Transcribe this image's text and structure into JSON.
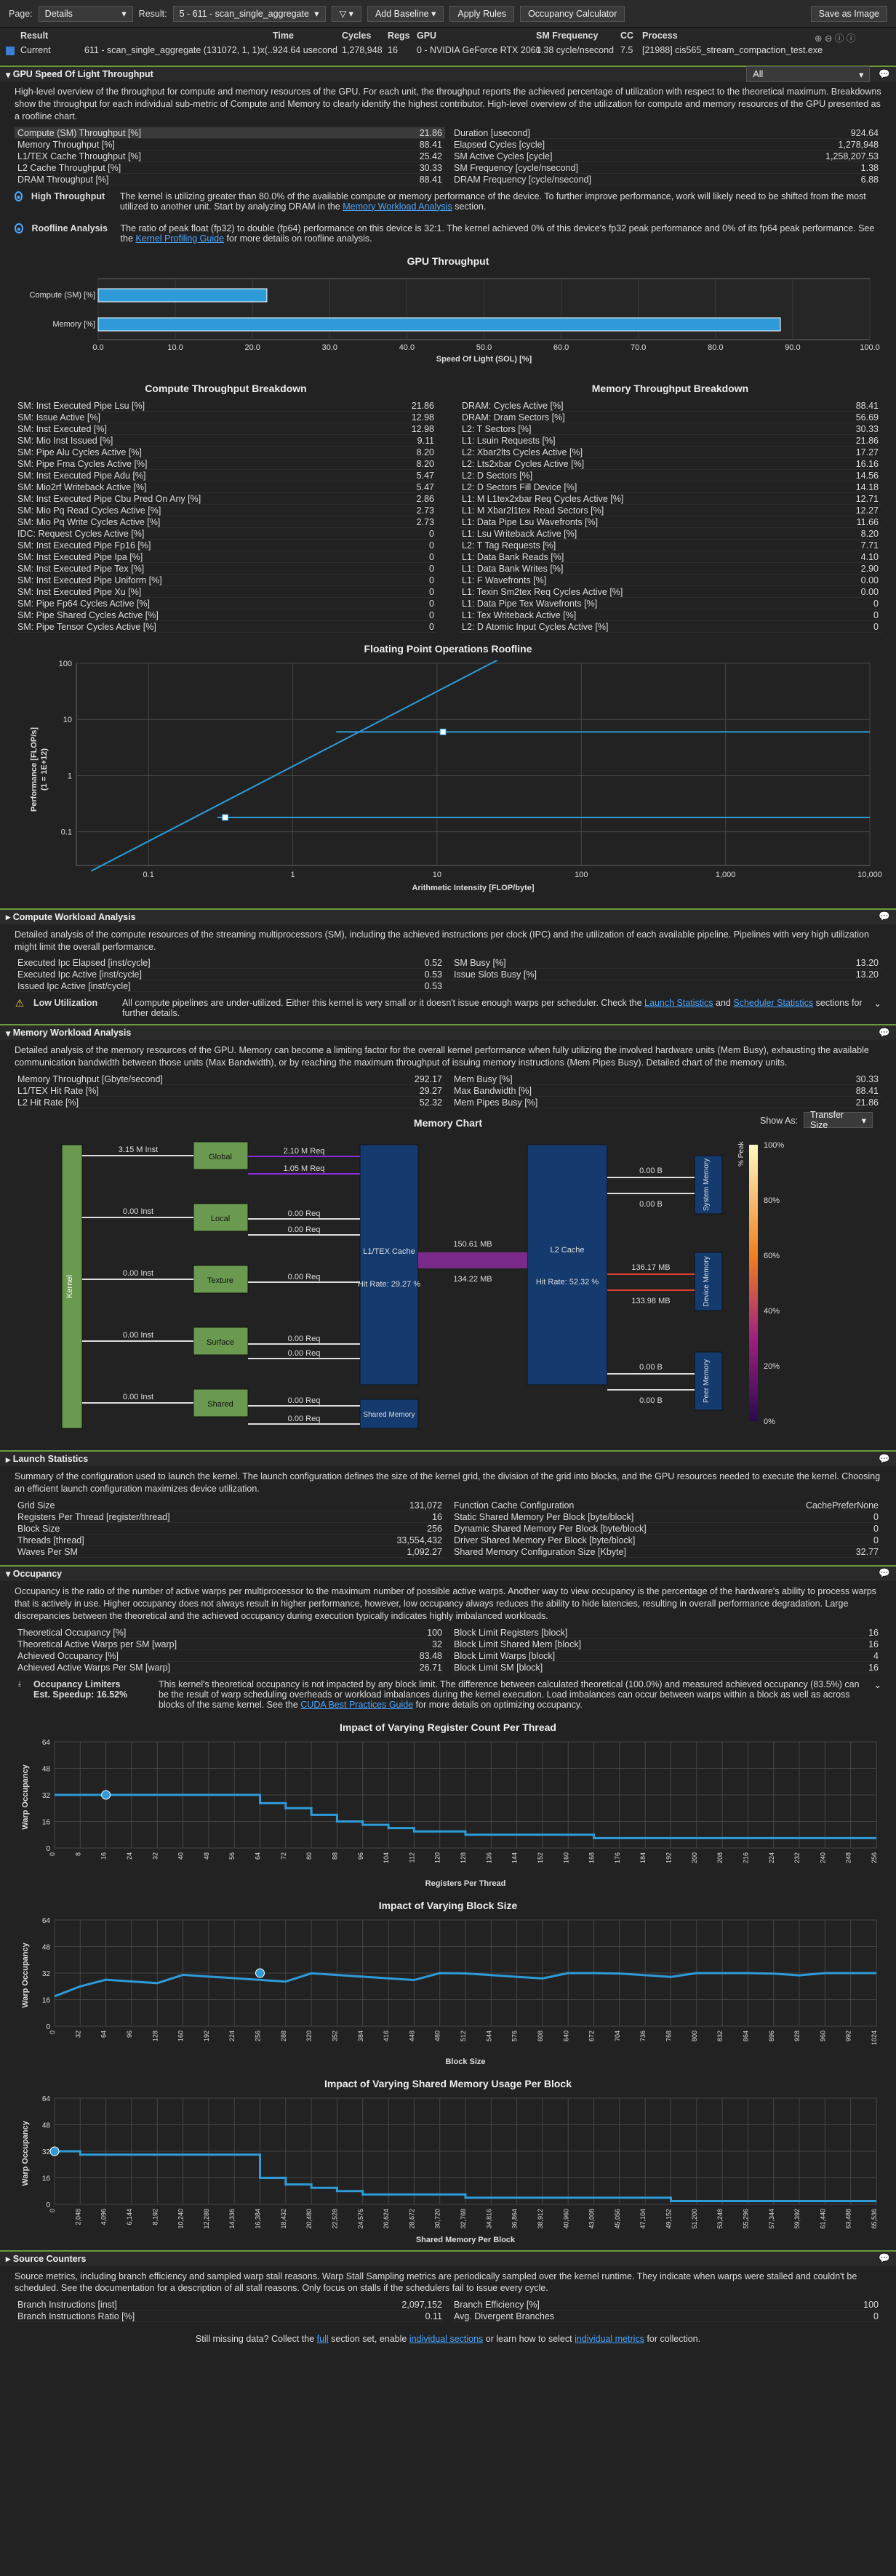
{
  "toolbar": {
    "page_label": "Page:",
    "page_value": "Details",
    "result_label": "Result:",
    "result_value": "5 - 611 - scan_single_aggregate",
    "filter": "▽ ▾",
    "add_baseline": "Add Baseline ▾",
    "apply_rules": "Apply Rules",
    "occupancy_calc": "Occupancy Calculator",
    "save_image": "Save as Image"
  },
  "header": {
    "cols": [
      "Result",
      "Time",
      "Cycles",
      "Regs",
      "GPU",
      "SM Frequency",
      "CC",
      "Process"
    ],
    "current_label": "Current",
    "values": [
      "611 - scan_single_aggregate (131072, 1, 1)x(...",
      "924.64 usecond",
      "1,278,948",
      "16",
      "0 - NVIDIA GeForce RTX 2060",
      "1.38 cycle/nsecond",
      "7.5",
      "[21988] cis565_stream_compaction_test.exe"
    ]
  },
  "sol": {
    "title": "GPU Speed Of Light Throughput",
    "dropdown": "All",
    "desc": "High-level overview of the throughput for compute and memory resources of the GPU. For each unit, the throughput reports the achieved percentage of utilization with respect to the theoretical maximum. Breakdowns show the throughput for each individual sub-metric of Compute and Memory to clearly identify the highest contributor. High-level overview of the utilization for compute and memory resources of the GPU presented as a roofline chart.",
    "left": [
      [
        "Compute (SM) Throughput [%]",
        "21.86"
      ],
      [
        "Memory Throughput [%]",
        "88.41"
      ],
      [
        "L1/TEX Cache Throughput [%]",
        "25.42"
      ],
      [
        "L2 Cache Throughput [%]",
        "30.33"
      ],
      [
        "DRAM Throughput [%]",
        "88.41"
      ]
    ],
    "right": [
      [
        "Duration [usecond]",
        "924.64"
      ],
      [
        "Elapsed Cycles [cycle]",
        "1,278,948"
      ],
      [
        "SM Active Cycles [cycle]",
        "1,258,207.53"
      ],
      [
        "SM Frequency [cycle/nsecond]",
        "1.38"
      ],
      [
        "DRAM Frequency [cycle/nsecond]",
        "6.88"
      ]
    ],
    "hint1_title": "High Throughput",
    "hint1": "The kernel is utilizing greater than 80.0% of the available compute or memory performance of the device. To further improve performance, work will likely need to be shifted from the most utilized to another unit. Start by analyzing DRAM in the",
    "hint1_link": "Memory Workload Analysis",
    "hint1_end": "section.",
    "hint2_title": "Roofline Analysis",
    "hint2": "The ratio of peak float (fp32) to double (fp64) performance on this device is 32:1. The kernel achieved 0% of this device's fp32 peak performance and 0% of its fp64 peak performance. See the",
    "hint2_link": "Kernel Profiling Guide",
    "hint2_end": "for more details on roofline analysis."
  },
  "gpu_chart": {
    "title": "GPU Throughput",
    "xlabel": "Speed Of Light (SOL) [%]",
    "cats": [
      "Compute (SM) [%]",
      "Memory [%]"
    ],
    "values": [
      21.86,
      88.41
    ],
    "ticks": [
      "0.0",
      "10.0",
      "20.0",
      "30.0",
      "40.0",
      "50.0",
      "60.0",
      "70.0",
      "80.0",
      "90.0",
      "100.0"
    ]
  },
  "breakdown": {
    "left_title": "Compute Throughput Breakdown",
    "right_title": "Memory Throughput Breakdown",
    "left": [
      [
        "SM: Inst Executed Pipe Lsu [%]",
        "21.86"
      ],
      [
        "SM: Issue Active [%]",
        "12.98"
      ],
      [
        "SM: Inst Executed [%]",
        "12.98"
      ],
      [
        "SM: Mio Inst Issued [%]",
        "9.11"
      ],
      [
        "SM: Pipe Alu Cycles Active [%]",
        "8.20"
      ],
      [
        "SM: Pipe Fma Cycles Active [%]",
        "8.20"
      ],
      [
        "SM: Inst Executed Pipe Adu [%]",
        "5.47"
      ],
      [
        "SM: Mio2rf Writeback Active [%]",
        "5.47"
      ],
      [
        "SM: Inst Executed Pipe Cbu Pred On Any [%]",
        "2.86"
      ],
      [
        "SM: Mio Pq Read Cycles Active [%]",
        "2.73"
      ],
      [
        "SM: Mio Pq Write Cycles Active [%]",
        "2.73"
      ],
      [
        "IDC: Request Cycles Active [%]",
        "0"
      ],
      [
        "SM: Inst Executed Pipe Fp16 [%]",
        "0"
      ],
      [
        "SM: Inst Executed Pipe Ipa [%]",
        "0"
      ],
      [
        "SM: Inst Executed Pipe Tex [%]",
        "0"
      ],
      [
        "SM: Inst Executed Pipe Uniform [%]",
        "0"
      ],
      [
        "SM: Inst Executed Pipe Xu [%]",
        "0"
      ],
      [
        "SM: Pipe Fp64 Cycles Active [%]",
        "0"
      ],
      [
        "SM: Pipe Shared Cycles Active [%]",
        "0"
      ],
      [
        "SM: Pipe Tensor Cycles Active [%]",
        "0"
      ]
    ],
    "right": [
      [
        "DRAM: Cycles Active [%]",
        "88.41"
      ],
      [
        "DRAM: Dram Sectors [%]",
        "56.69"
      ],
      [
        "L2: T Sectors [%]",
        "30.33"
      ],
      [
        "L1: Lsuin Requests [%]",
        "21.86"
      ],
      [
        "L2: Xbar2lts Cycles Active [%]",
        "17.27"
      ],
      [
        "L2: Lts2xbar Cycles Active [%]",
        "16.16"
      ],
      [
        "L2: D Sectors [%]",
        "14.56"
      ],
      [
        "L2: D Sectors Fill Device [%]",
        "14.18"
      ],
      [
        "L1: M L1tex2xbar Req Cycles Active [%]",
        "12.71"
      ],
      [
        "L1: M Xbar2l1tex Read Sectors [%]",
        "12.27"
      ],
      [
        "L1: Data Pipe Lsu Wavefronts [%]",
        "11.66"
      ],
      [
        "L1: Lsu Writeback Active [%]",
        "8.20"
      ],
      [
        "L2: T Tag Requests [%]",
        "7.71"
      ],
      [
        "L1: Data Bank Reads [%]",
        "4.10"
      ],
      [
        "L1: Data Bank Writes [%]",
        "2.90"
      ],
      [
        "L1: F Wavefronts [%]",
        "0.00"
      ],
      [
        "L1: Texin Sm2tex Req Cycles Active [%]",
        "0.00"
      ],
      [
        "L1: Data Pipe Tex Wavefronts [%]",
        "0"
      ],
      [
        "L1: Tex Writeback Active [%]",
        "0"
      ],
      [
        "L2: D Atomic Input Cycles Active [%]",
        "0"
      ]
    ]
  },
  "roofline": {
    "title": "Floating Point Operations Roofline",
    "ylabel": "Performance [FLOP/s]",
    "ylabel2": "(1 = 1E+12)",
    "xlabel": "Arithmetic Intensity [FLOP/byte]",
    "xticks": [
      "0.1",
      "1",
      "10",
      "100",
      "1,000",
      "10,000"
    ],
    "yticks": [
      "100",
      "10",
      "1",
      "0.1"
    ]
  },
  "compute": {
    "title": "Compute Workload Analysis",
    "desc": "Detailed analysis of the compute resources of the streaming multiprocessors (SM), including the achieved instructions per clock (IPC) and the utilization of each available pipeline. Pipelines with very high utilization might limit the overall performance.",
    "left": [
      [
        "Executed Ipc Elapsed [inst/cycle]",
        "0.52"
      ],
      [
        "Executed Ipc Active [inst/cycle]",
        "0.53"
      ],
      [
        "Issued Ipc Active [inst/cycle]",
        "0.53"
      ]
    ],
    "right": [
      [
        "SM Busy [%]",
        "13.20"
      ],
      [
        "Issue Slots Busy [%]",
        "13.20"
      ]
    ],
    "hint_title": "Low Utilization",
    "hint": "All compute pipelines are under-utilized. Either this kernel is very small or it doesn't issue enough warps per scheduler. Check the",
    "hint_link1": "Launch Statistics",
    "hint_and": "and",
    "hint_link2": "Scheduler Statistics",
    "hint_end": "sections for further details."
  },
  "memory": {
    "title": "Memory Workload Analysis",
    "desc": "Detailed analysis of the memory resources of the GPU. Memory can become a limiting factor for the overall kernel performance when fully utilizing the involved hardware units (Mem Busy), exhausting the available communication bandwidth between those units (Max Bandwidth), or by reaching the maximum throughput of issuing memory instructions (Mem Pipes Busy). Detailed chart of the memory units.",
    "left": [
      [
        "Memory Throughput [Gbyte/second]",
        "292.17"
      ],
      [
        "L1/TEX Hit Rate [%]",
        "29.27"
      ],
      [
        "L2 Hit Rate [%]",
        "52.32"
      ]
    ],
    "right": [
      [
        "Mem Busy [%]",
        "30.33"
      ],
      [
        "Max Bandwidth [%]",
        "88.41"
      ],
      [
        "Mem Pipes Busy [%]",
        "21.86"
      ]
    ]
  },
  "memchart": {
    "title": "Memory Chart",
    "show_as": "Show As:",
    "transfer": "Transfer Size",
    "kernel": "Kernel",
    "global": "Global",
    "local": "Local",
    "texture": "Texture",
    "surface": "Surface",
    "shared": "Shared",
    "l1": "L1/TEX Cache",
    "l1hit": "Hit Rate: 29.27 %",
    "l2": "L2 Cache",
    "l2hit": "Hit Rate: 52.32 %",
    "shmem": "Shared Memory",
    "sysmem": "System Memory",
    "devmem": "Device Memory",
    "peermem": "Peer Memory",
    "inst_global": "3.15 M Inst",
    "inst_local": "0.00 Inst",
    "inst_tex": "0.00 Inst",
    "inst_surf": "0.00 Inst",
    "inst_shared": "0.00 Inst",
    "req_g1": "2.10 M Req",
    "req_g2": "1.05 M Req",
    "req_l1": "0.00 Req",
    "req_l2": "0.00 Req",
    "req_t": "0.00 Req",
    "req_s1": "0.00 Req",
    "req_s2": "0.00 Req",
    "req_sh1": "0.00 Req",
    "req_sh2": "0.00 Req",
    "l1l2_a": "150.61 MB",
    "l1l2_b": "134.22 MB",
    "sys_a": "0.00 B",
    "sys_b": "0.00 B",
    "dev_a": "136.17 MB",
    "dev_b": "133.98 MB",
    "peer_a": "0.00 B",
    "peer_b": "0.00 B",
    "legend": [
      "100%",
      "80%",
      "60%",
      "40%",
      "20%",
      "0%"
    ],
    "legend_title": "% Peak"
  },
  "launch": {
    "title": "Launch Statistics",
    "desc": "Summary of the configuration used to launch the kernel. The launch configuration defines the size of the kernel grid, the division of the grid into blocks, and the GPU resources needed to execute the kernel. Choosing an efficient launch configuration maximizes device utilization.",
    "left": [
      [
        "Grid Size",
        "131,072"
      ],
      [
        "Registers Per Thread [register/thread]",
        "16"
      ],
      [
        "Block Size",
        "256"
      ],
      [
        "Threads [thread]",
        "33,554,432"
      ],
      [
        "Waves Per SM",
        "1,092.27"
      ]
    ],
    "right": [
      [
        "Function Cache Configuration",
        "CachePreferNone"
      ],
      [
        "Static Shared Memory Per Block [byte/block]",
        "0"
      ],
      [
        "Dynamic Shared Memory Per Block [byte/block]",
        "0"
      ],
      [
        "Driver Shared Memory Per Block [byte/block]",
        "0"
      ],
      [
        "Shared Memory Configuration Size [Kbyte]",
        "32.77"
      ]
    ]
  },
  "occupancy": {
    "title": "Occupancy",
    "desc": "Occupancy is the ratio of the number of active warps per multiprocessor to the maximum number of possible active warps. Another way to view occupancy is the percentage of the hardware's ability to process warps that is actively in use. Higher occupancy does not always result in higher performance, however, low occupancy always reduces the ability to hide latencies, resulting in overall performance degradation. Large discrepancies between the theoretical and the achieved occupancy during execution typically indicates highly imbalanced workloads.",
    "left": [
      [
        "Theoretical Occupancy [%]",
        "100"
      ],
      [
        "Theoretical Active Warps per SM [warp]",
        "32"
      ],
      [
        "Achieved Occupancy [%]",
        "83.48"
      ],
      [
        "Achieved Active Warps Per SM [warp]",
        "26.71"
      ]
    ],
    "right": [
      [
        "Block Limit Registers [block]",
        "16"
      ],
      [
        "Block Limit Shared Mem [block]",
        "16"
      ],
      [
        "Block Limit Warps [block]",
        "4"
      ],
      [
        "Block Limit SM [block]",
        "16"
      ]
    ],
    "hint_title": "Occupancy Limiters",
    "hint_sub": "Est. Speedup: 16.52%",
    "hint": "This kernel's theoretical occupancy is not impacted by any block limit. The difference between calculated theoretical (100.0%) and measured achieved occupancy (83.5%) can be the result of warp scheduling overheads or workload imbalances during the kernel execution. Load imbalances can occur between warps within a block as well as across blocks of the same kernel. See the",
    "hint_link": "CUDA Best Practices Guide",
    "hint_end": "for more details on optimizing occupancy."
  },
  "occ_charts": [
    {
      "title": "Impact of Varying Register Count Per Thread",
      "xlabel": "Registers Per Thread",
      "ylabel": "Warp Occupancy",
      "ticks": [
        "0",
        "8",
        "16",
        "24",
        "32",
        "40",
        "48",
        "56",
        "64",
        "72",
        "80",
        "88",
        "96",
        "104",
        "112",
        "120",
        "128",
        "136",
        "144",
        "152",
        "160",
        "168",
        "176",
        "184",
        "192",
        "200",
        "208",
        "216",
        "224",
        "232",
        "240",
        "248",
        "256"
      ]
    },
    {
      "title": "Impact of Varying Block Size",
      "xlabel": "Block Size",
      "ylabel": "Warp Occupancy",
      "ticks": [
        "0",
        "32",
        "64",
        "96",
        "128",
        "160",
        "192",
        "224",
        "256",
        "288",
        "320",
        "352",
        "384",
        "416",
        "448",
        "480",
        "512",
        "544",
        "576",
        "608",
        "640",
        "672",
        "704",
        "736",
        "768",
        "800",
        "832",
        "864",
        "896",
        "928",
        "960",
        "992",
        "1024"
      ]
    },
    {
      "title": "Impact of Varying Shared Memory Usage Per Block",
      "xlabel": "Shared Memory Per Block",
      "ylabel": "Warp Occupancy",
      "ticks": [
        "0",
        "2,048",
        "4,096",
        "6,144",
        "8,192",
        "10,240",
        "12,288",
        "14,336",
        "16,384",
        "18,432",
        "20,480",
        "22,528",
        "24,576",
        "26,624",
        "28,672",
        "30,720",
        "32,768",
        "34,816",
        "36,864",
        "38,912",
        "40,960",
        "43,008",
        "45,056",
        "47,104",
        "49,152",
        "51,200",
        "53,248",
        "55,296",
        "57,344",
        "59,392",
        "61,440",
        "63,488",
        "65,536"
      ]
    }
  ],
  "source": {
    "title": "Source Counters",
    "desc": "Source metrics, including branch efficiency and sampled warp stall reasons. Warp Stall Sampling metrics are periodically sampled over the kernel runtime. They indicate when warps were stalled and couldn't be scheduled. See the documentation for a description of all stall reasons. Only focus on stalls if the schedulers fail to issue every cycle.",
    "left": [
      [
        "Branch Instructions [inst]",
        "2,097,152"
      ],
      [
        "Branch Instructions Ratio [%]",
        "0.11"
      ]
    ],
    "right": [
      [
        "Branch Efficiency [%]",
        "100"
      ],
      [
        "Avg. Divergent Branches",
        "0"
      ]
    ]
  },
  "footer": {
    "a": "Still missing data? Collect the",
    "full": "full",
    "b": "section set, enable",
    "c": "individual sections",
    "d": "or learn how to select",
    "e": "individual metrics",
    "f": "for collection."
  }
}
